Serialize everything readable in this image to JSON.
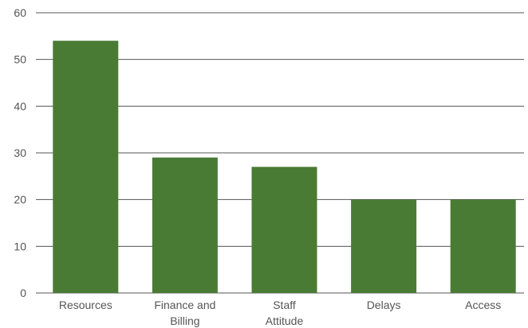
{
  "chart_data": {
    "type": "bar",
    "title": "",
    "xlabel": "",
    "ylabel": "",
    "categories": [
      [
        "Resources"
      ],
      [
        "Finance and",
        "Billing"
      ],
      [
        "Staff",
        "Attitude"
      ],
      [
        "Delays"
      ],
      [
        "Access"
      ]
    ],
    "values": [
      54,
      29,
      27,
      20,
      20
    ],
    "ylim": [
      0,
      60
    ],
    "yticks": [
      0,
      10,
      20,
      30,
      40,
      50,
      60
    ],
    "grid": true,
    "bar_color": "#4a7b35",
    "grid_color": "#555555"
  }
}
